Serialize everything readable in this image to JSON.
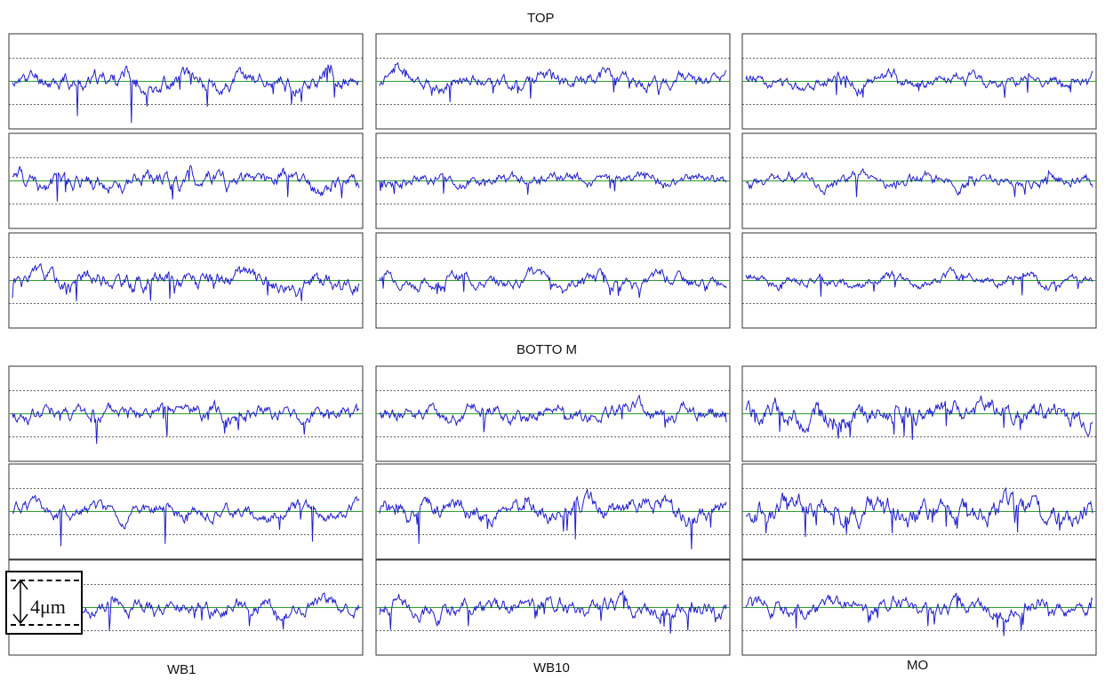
{
  "labels": {
    "top": "TOP",
    "bottom": "BOTTO M",
    "columns": [
      "WB1",
      "WB10",
      "MO"
    ],
    "scale": "4μm"
  },
  "colors": {
    "trace": "#1f1fd0",
    "baseline": "#2e9e2e",
    "frame": "#333333",
    "dashed": "#333333"
  },
  "chart_data": [
    {
      "type": "line",
      "title": "TOP",
      "panels": [
        {
          "column": "WB1",
          "row": 1,
          "baseline": 0,
          "amplitude": 1.0,
          "spikes": [
            -3.0,
            -2.8,
            -2.2,
            -1.8
          ],
          "seed": 11
        },
        {
          "column": "WB10",
          "row": 1,
          "baseline": 0,
          "amplitude": 0.8,
          "spikes": [
            -1.8,
            -1.5,
            -1.2
          ],
          "seed": 12
        },
        {
          "column": "MO",
          "row": 1,
          "baseline": 0,
          "amplitude": 0.7,
          "spikes": [
            -1.2,
            -1.0
          ],
          "seed": 13
        },
        {
          "column": "WB1",
          "row": 2,
          "baseline": 0,
          "amplitude": 1.0,
          "spikes": [
            -1.8,
            -1.6,
            -1.4
          ],
          "seed": 21
        },
        {
          "column": "WB10",
          "row": 2,
          "baseline": 0,
          "amplitude": 0.7,
          "spikes": [
            -1.1,
            -0.9
          ],
          "seed": 22
        },
        {
          "column": "MO",
          "row": 2,
          "baseline": 0,
          "amplitude": 0.7,
          "spikes": [
            -1.4,
            -1.2
          ],
          "seed": 23
        },
        {
          "column": "WB1",
          "row": 3,
          "baseline": 0,
          "amplitude": 1.0,
          "spikes": [
            -1.8,
            -1.6,
            -1.4
          ],
          "seed": 31
        },
        {
          "column": "WB10",
          "row": 3,
          "baseline": 0,
          "amplitude": 0.7,
          "spikes": [
            -1.0,
            -0.9
          ],
          "seed": 32
        },
        {
          "column": "MO",
          "row": 3,
          "baseline": 0,
          "amplitude": 0.6,
          "spikes": [
            -1.4,
            -1.3
          ],
          "seed": 33
        }
      ]
    },
    {
      "type": "line",
      "title": "BOTTO M",
      "panels": [
        {
          "column": "WB1",
          "row": 1,
          "baseline": 0,
          "amplitude": 0.9,
          "spikes": [
            -2.6,
            -2.0,
            -1.8
          ],
          "seed": 41
        },
        {
          "column": "WB10",
          "row": 1,
          "baseline": 0,
          "amplitude": 0.9,
          "spikes": [
            -1.6,
            -1.2
          ],
          "seed": 42
        },
        {
          "column": "MO",
          "row": 1,
          "baseline": 0,
          "amplitude": 1.3,
          "spikes": [
            -1.6,
            -1.4
          ],
          "seed": 43
        },
        {
          "column": "WB1",
          "row": 2,
          "baseline": 0,
          "amplitude": 0.8,
          "spikes": [
            -3.0,
            -2.8,
            -2.6
          ],
          "seed": 51
        },
        {
          "column": "WB10",
          "row": 2,
          "baseline": 0,
          "amplitude": 1.1,
          "spikes": [
            -2.8,
            -2.4,
            -2.0
          ],
          "seed": 52
        },
        {
          "column": "MO",
          "row": 2,
          "baseline": 0,
          "amplitude": 1.4,
          "spikes": [
            -2.2,
            -1.8
          ],
          "seed": 53
        },
        {
          "column": "WB1",
          "row": 3,
          "baseline": 0,
          "amplitude": 0.9,
          "spikes": [
            -2.0,
            -1.6
          ],
          "seed": 61
        },
        {
          "column": "WB10",
          "row": 3,
          "baseline": 0,
          "amplitude": 1.0,
          "spikes": [
            -1.6,
            -1.4
          ],
          "seed": 62
        },
        {
          "column": "MO",
          "row": 3,
          "baseline": 0,
          "amplitude": 0.9,
          "spikes": [
            -1.8,
            -1.6,
            -1.5
          ],
          "seed": 63
        }
      ]
    }
  ]
}
